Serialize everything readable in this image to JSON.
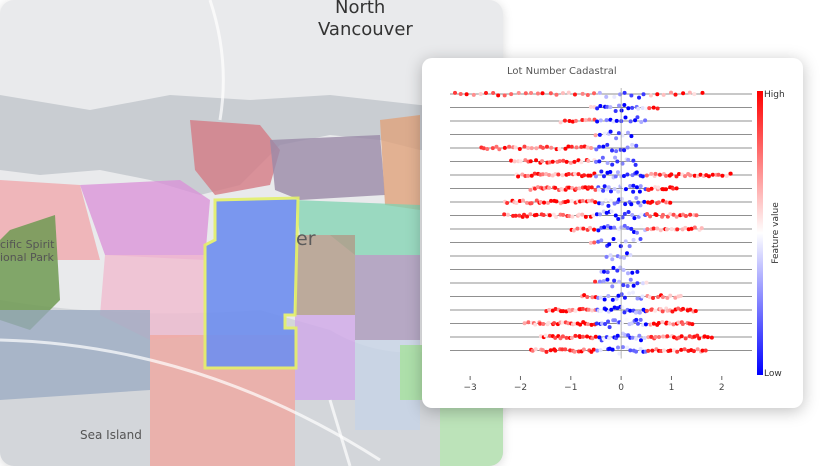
{
  "map": {
    "labels": {
      "north": "North",
      "vancouver": "Vancouver",
      "pacific_spirit_1": "cific Spirit",
      "pacific_spirit_2": "ional Park",
      "sea_island": "Sea Island",
      "center_partial": "er"
    },
    "colors": {
      "water": "#c9cdd2",
      "land": "#e9eaec",
      "selected_fill": "#6f8ff0",
      "selected_border": "#e3f06a"
    }
  },
  "chart_data": {
    "type": "scatter",
    "title": "Lot Number Cadastral",
    "xlim": [
      -3.4,
      2.6
    ],
    "xticks": [
      -3,
      -2,
      -1,
      0,
      1,
      2
    ],
    "xtick_labels": [
      "−3",
      "−2",
      "−1",
      "0",
      "1",
      "2"
    ],
    "rows": 20,
    "colorbar": {
      "high": "High",
      "low": "Low",
      "label": "Feature value",
      "colors": [
        "#0000ff",
        "#ffffff",
        "#ff0000"
      ]
    },
    "rows_spread": [
      {
        "min": -3.3,
        "max": 1.6,
        "n": 40
      },
      {
        "min": -0.6,
        "max": 0.7,
        "n": 20
      },
      {
        "min": -1.2,
        "max": 0.5,
        "n": 22
      },
      {
        "min": -0.5,
        "max": 0.2,
        "n": 10
      },
      {
        "min": -2.8,
        "max": 0.3,
        "n": 40
      },
      {
        "min": -2.2,
        "max": 0.3,
        "n": 36
      },
      {
        "min": -2.1,
        "max": 2.2,
        "n": 70
      },
      {
        "min": -1.8,
        "max": 1.1,
        "n": 60
      },
      {
        "min": -2.3,
        "max": 1.0,
        "n": 56
      },
      {
        "min": -2.3,
        "max": 1.5,
        "n": 60
      },
      {
        "min": -1.0,
        "max": 1.6,
        "n": 40
      },
      {
        "min": -0.6,
        "max": 0.4,
        "n": 14
      },
      {
        "min": -0.3,
        "max": 0.2,
        "n": 8
      },
      {
        "min": -0.4,
        "max": 0.3,
        "n": 10
      },
      {
        "min": -0.5,
        "max": 0.5,
        "n": 14
      },
      {
        "min": -0.8,
        "max": 1.2,
        "n": 30
      },
      {
        "min": -1.5,
        "max": 1.5,
        "n": 60
      },
      {
        "min": -1.9,
        "max": 1.4,
        "n": 64
      },
      {
        "min": -1.6,
        "max": 1.8,
        "n": 60
      },
      {
        "min": -1.8,
        "max": 1.7,
        "n": 56
      }
    ]
  }
}
